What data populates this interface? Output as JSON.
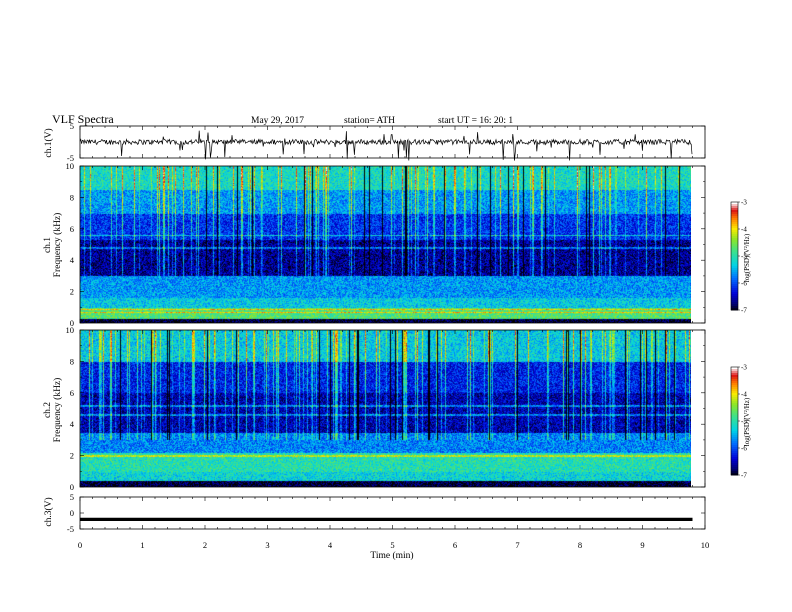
{
  "header": {
    "title": "VLF  Spectra",
    "date": "May 29, 2017",
    "station": "station= ATH",
    "start": "start  UT  =    16: 20: 1"
  },
  "chart_data": [
    {
      "type": "line",
      "ylabel": "ch.1(V)",
      "ylim": [
        -5,
        5
      ],
      "yticks": [
        "5",
        "-5"
      ],
      "xlim": [
        0,
        10
      ],
      "x_extent": [
        0,
        9.8
      ],
      "baseline": 0,
      "series": [
        {
          "values_approx": "noisy trace near 0 V with frequent negative spikes"
        }
      ]
    },
    {
      "type": "heatmap",
      "ylabel_top": "ch.1",
      "ylabel": "Frequency  (kHz)",
      "ylim": [
        0,
        10
      ],
      "yticks": [
        "0",
        "2",
        "4",
        "6",
        "8",
        "10"
      ],
      "xlim": [
        0,
        10
      ],
      "x_extent": [
        0,
        9.8
      ],
      "bands": [
        {
          "fmin": 0,
          "fmax": 0.3,
          "level": -6.9
        },
        {
          "fmin": 0.3,
          "fmax": 1.0,
          "level": -4.7
        },
        {
          "fmin": 1.0,
          "fmax": 1.6,
          "level": -5.3
        },
        {
          "fmin": 1.6,
          "fmax": 3.0,
          "level": -5.6
        },
        {
          "fmin": 3.0,
          "fmax": 5.3,
          "level": -6.6
        },
        {
          "fmin": 5.3,
          "fmax": 7.0,
          "level": -6.1
        },
        {
          "fmin": 7.0,
          "fmax": 8.5,
          "level": -5.6
        },
        {
          "fmin": 8.5,
          "fmax": 10.0,
          "level": -5.1
        }
      ],
      "lines_khz": [
        0.7,
        0.9,
        4.8,
        5.6
      ],
      "colorbar": {
        "label": "log(PSD)(V²/Hz)",
        "ticks": [
          "-3",
          "-4",
          "-5",
          "-6",
          "-7"
        ],
        "range": [
          -7,
          -3
        ]
      }
    },
    {
      "type": "heatmap",
      "ylabel_top": "ch.2",
      "ylabel": "Frequency  (kHz)",
      "ylim": [
        0,
        10
      ],
      "yticks": [
        "0",
        "2",
        "4",
        "6",
        "8",
        "10"
      ],
      "xlim": [
        0,
        10
      ],
      "x_extent": [
        0,
        9.8
      ],
      "bands": [
        {
          "fmin": 0,
          "fmax": 0.4,
          "level": -6.9
        },
        {
          "fmin": 0.4,
          "fmax": 1.0,
          "level": -5.2
        },
        {
          "fmin": 1.0,
          "fmax": 2.2,
          "level": -5.0
        },
        {
          "fmin": 2.2,
          "fmax": 3.5,
          "level": -5.7
        },
        {
          "fmin": 3.5,
          "fmax": 6.0,
          "level": -6.5
        },
        {
          "fmin": 6.0,
          "fmax": 8.0,
          "level": -6.2
        },
        {
          "fmin": 8.0,
          "fmax": 10.0,
          "level": -5.3
        }
      ],
      "lines_khz": [
        2.0,
        4.6,
        5.2
      ],
      "colorbar": {
        "label": "log(PSD)(V²/Hz)",
        "ticks": [
          "-3",
          "-4",
          "-5",
          "-6",
          "-7"
        ],
        "range": [
          -7,
          -3
        ]
      }
    },
    {
      "type": "line",
      "ylabel": "ch.3(V)",
      "ylim": [
        -5,
        5
      ],
      "yticks": [
        "5",
        "0",
        "-5"
      ],
      "xlim": [
        0,
        10
      ],
      "x_extent": [
        0,
        9.8
      ],
      "baseline": -2,
      "series": [
        {
          "values_approx": "flat thick trace near -2 V"
        }
      ]
    }
  ],
  "xaxis": {
    "label": "Time  (min)",
    "ticks": [
      "0",
      "1",
      "2",
      "3",
      "4",
      "5",
      "6",
      "7",
      "8",
      "9",
      "10"
    ],
    "range": [
      0,
      10
    ]
  }
}
